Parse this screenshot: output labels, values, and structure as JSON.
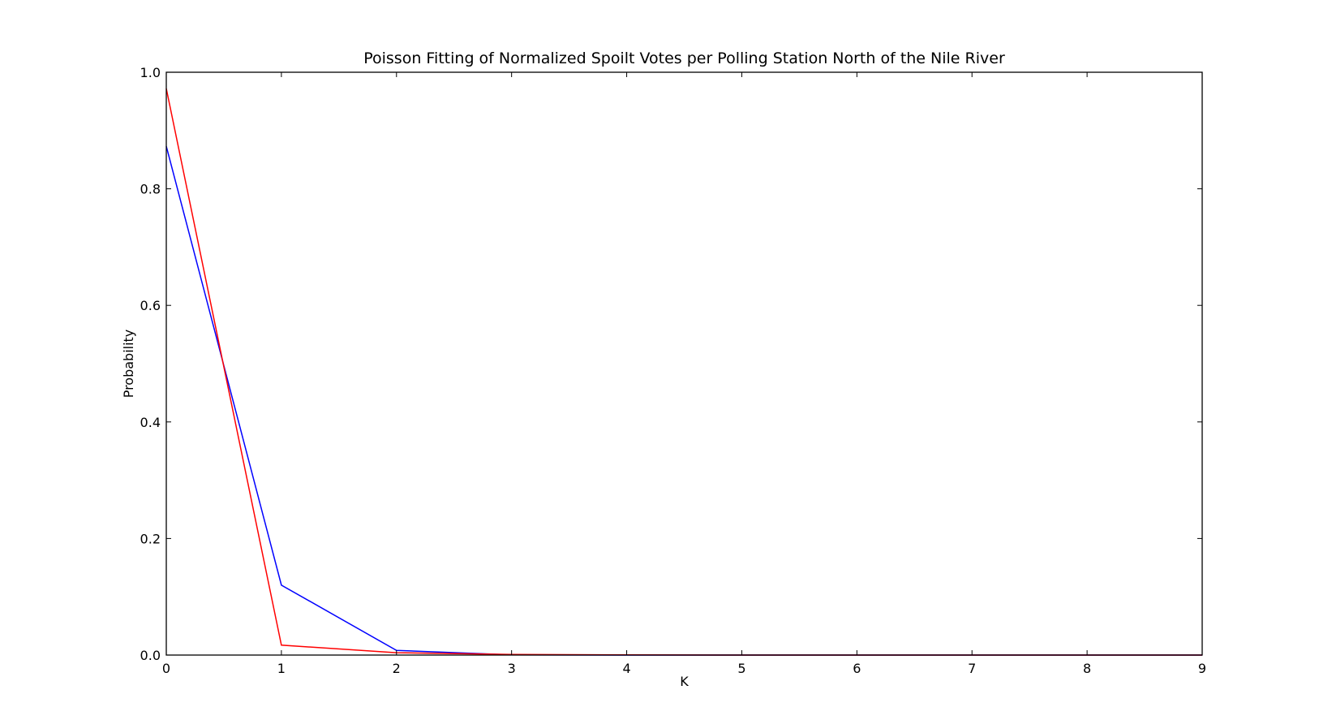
{
  "chart_data": {
    "type": "line",
    "title": "Poisson Fitting of Normalized Spoilt Votes per Polling Station North of the Nile River",
    "xlabel": "K",
    "ylabel": "Probability",
    "xlim": [
      0,
      9
    ],
    "ylim": [
      0,
      1
    ],
    "x_ticks": [
      "0",
      "1",
      "2",
      "3",
      "4",
      "5",
      "6",
      "7",
      "8",
      "9"
    ],
    "y_ticks": [
      "0.0",
      "0.2",
      "0.4",
      "0.6",
      "0.8",
      "1.0"
    ],
    "grid": false,
    "legend": "none",
    "x": [
      0,
      1,
      2,
      3,
      4,
      5,
      6,
      7,
      8,
      9
    ],
    "series": [
      {
        "color": "#0000ff",
        "values": [
          0.873,
          0.12,
          0.008,
          0.0004,
          0.0,
          0.0,
          0.0,
          0.0,
          0.0,
          0.0
        ]
      },
      {
        "color": "#ff0000",
        "values": [
          0.972,
          0.017,
          0.004,
          0.001,
          0.0003,
          0.0,
          0.0,
          0.0,
          0.0,
          0.0
        ]
      }
    ]
  }
}
